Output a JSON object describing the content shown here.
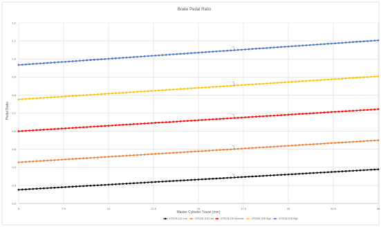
{
  "chart_data": {
    "type": "line",
    "title": "Brake Pedal Ratio",
    "xlabel": "Master Cylinder Travel (mm)",
    "ylabel": "Pedal Ratio",
    "xlim": [
      5,
      25
    ],
    "ylim": [
      0.2,
      1.2
    ],
    "x_ticks": [
      "5",
      "7.5",
      "10",
      "12.5",
      "15",
      "17.5",
      "20",
      "22.5",
      "25"
    ],
    "y_ticks": [
      "0.2",
      "0.3",
      "0.4",
      "0.5",
      "0.6",
      "0.7",
      "0.8",
      "0.9",
      "1.0",
      "1.1",
      "1.2"
    ],
    "grid": true,
    "legend_position": "bottom",
    "series": [
      {
        "name": "CPS106-1A2 Low",
        "color": "#000000",
        "start": [
          5,
          0.276
        ],
        "end": [
          25,
          0.389
        ],
        "callout_label": "---"
      },
      {
        "name": "CPS106-1DB Low",
        "color": "#ed7d31",
        "start": [
          5,
          0.428
        ],
        "end": [
          25,
          0.55
        ],
        "callout_label": "---"
      },
      {
        "name": "CPS106-1D3 Nominal",
        "color": "#ff0000",
        "start": [
          5,
          0.6
        ],
        "end": [
          25,
          0.722
        ],
        "callout_label": "---"
      },
      {
        "name": "CPS106-1DB High",
        "color": "#ffc000",
        "start": [
          5,
          0.776
        ],
        "end": [
          25,
          0.904
        ],
        "callout_label": "---"
      },
      {
        "name": "CPS106-1DB High",
        "color": "#4472c4",
        "start": [
          5,
          0.967
        ],
        "end": [
          25,
          1.103
        ],
        "callout_label": "---"
      }
    ]
  }
}
